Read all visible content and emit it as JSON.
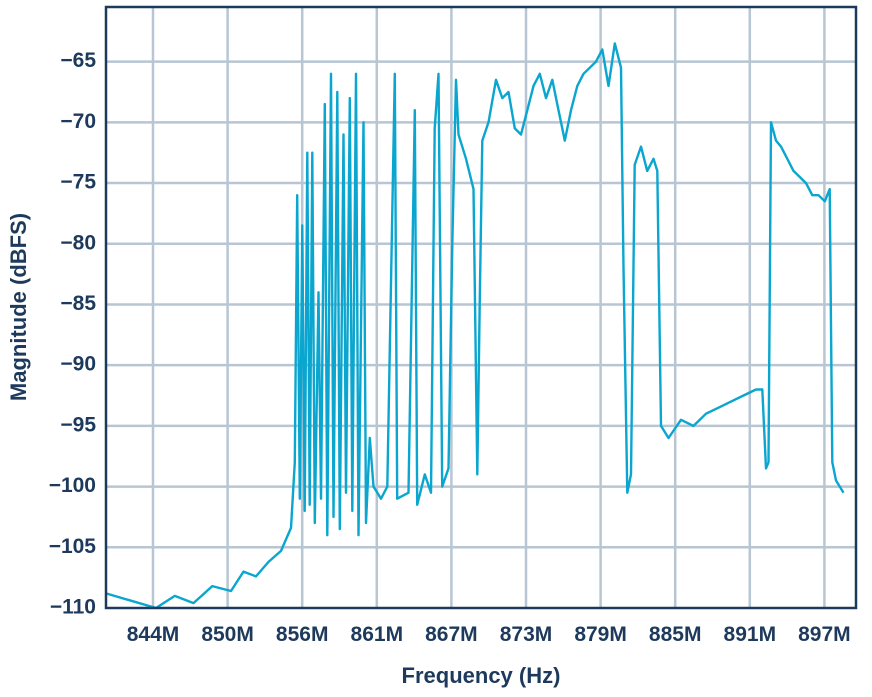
{
  "colors": {
    "trace": "#0aa6cf",
    "grid": "#b7c6d2",
    "frame": "#1d3a5c",
    "text": "#1d3a5c"
  },
  "chart_data": {
    "type": "line",
    "title": "",
    "xlabel": "Frequency (Hz)",
    "ylabel": "Magnitude (dBFS)",
    "x_tick_labels": [
      "844M",
      "850M",
      "856M",
      "861M",
      "867M",
      "873M",
      "879M",
      "885M",
      "891M",
      "897M"
    ],
    "y_tick_labels": [
      "−65",
      "−70",
      "−75",
      "−80",
      "−85",
      "−90",
      "−95",
      "−100",
      "−105",
      "−110"
    ],
    "xlim": [
      838.0,
      898.0
    ],
    "ylim": [
      -110,
      -60.5
    ],
    "grid": true,
    "legend": "none",
    "series": [
      {
        "values": [
          [
            838.0,
            -108.8
          ],
          [
            840.0,
            -109.4
          ],
          [
            842.0,
            -110.0
          ],
          [
            843.5,
            -109.0
          ],
          [
            845.0,
            -109.6
          ],
          [
            846.5,
            -108.2
          ],
          [
            848.0,
            -108.6
          ],
          [
            849.0,
            -107.0
          ],
          [
            850.0,
            -107.4
          ],
          [
            851.0,
            -106.2
          ],
          [
            852.0,
            -105.3
          ],
          [
            852.8,
            -103.4
          ],
          [
            853.1,
            -98.0
          ],
          [
            853.3,
            -76.0
          ],
          [
            853.5,
            -101.0
          ],
          [
            853.7,
            -78.5
          ],
          [
            853.9,
            -102.0
          ],
          [
            854.1,
            -72.5
          ],
          [
            854.3,
            -101.5
          ],
          [
            854.5,
            -72.5
          ],
          [
            854.7,
            -103.0
          ],
          [
            855.0,
            -84.0
          ],
          [
            855.2,
            -101.0
          ],
          [
            855.5,
            -68.5
          ],
          [
            855.7,
            -104.0
          ],
          [
            856.0,
            -66.0
          ],
          [
            856.2,
            -102.5
          ],
          [
            856.5,
            -67.5
          ],
          [
            856.7,
            -103.5
          ],
          [
            857.0,
            -71.0
          ],
          [
            857.2,
            -100.5
          ],
          [
            857.5,
            -68.0
          ],
          [
            857.7,
            -102.0
          ],
          [
            858.0,
            -66.0
          ],
          [
            858.2,
            -104.0
          ],
          [
            858.6,
            -70.0
          ],
          [
            858.8,
            -103.0
          ],
          [
            859.1,
            -96.0
          ],
          [
            859.4,
            -100.0
          ],
          [
            860.0,
            -101.0
          ],
          [
            860.5,
            -100.0
          ],
          [
            861.1,
            -66.0
          ],
          [
            861.3,
            -101.0
          ],
          [
            862.2,
            -100.5
          ],
          [
            862.7,
            -69.0
          ],
          [
            862.9,
            -101.5
          ],
          [
            863.5,
            -99.0
          ],
          [
            864.0,
            -100.5
          ],
          [
            864.3,
            -70.5
          ],
          [
            864.6,
            -66.0
          ],
          [
            864.9,
            -100.0
          ],
          [
            865.4,
            -98.5
          ],
          [
            865.7,
            -80.0
          ],
          [
            866.0,
            -66.5
          ],
          [
            866.2,
            -71.0
          ],
          [
            866.8,
            -73.0
          ],
          [
            867.4,
            -75.5
          ],
          [
            867.7,
            -99.0
          ],
          [
            867.9,
            -85.0
          ],
          [
            868.1,
            -71.5
          ],
          [
            868.6,
            -70.0
          ],
          [
            869.2,
            -66.5
          ],
          [
            869.7,
            -68.0
          ],
          [
            870.2,
            -67.5
          ],
          [
            870.7,
            -70.5
          ],
          [
            871.2,
            -71.0
          ],
          [
            871.7,
            -69.0
          ],
          [
            872.2,
            -67.0
          ],
          [
            872.7,
            -66.0
          ],
          [
            873.2,
            -68.0
          ],
          [
            873.7,
            -66.5
          ],
          [
            874.2,
            -69.0
          ],
          [
            874.7,
            -71.5
          ],
          [
            875.2,
            -69.0
          ],
          [
            875.7,
            -67.0
          ],
          [
            876.2,
            -66.0
          ],
          [
            876.7,
            -65.5
          ],
          [
            877.2,
            -65.0
          ],
          [
            877.7,
            -64.0
          ],
          [
            878.2,
            -67.0
          ],
          [
            878.7,
            -63.5
          ],
          [
            879.2,
            -65.5
          ],
          [
            879.4,
            -82.0
          ],
          [
            879.7,
            -100.5
          ],
          [
            880.0,
            -99.0
          ],
          [
            880.3,
            -73.5
          ],
          [
            880.8,
            -72.0
          ],
          [
            881.3,
            -74.0
          ],
          [
            881.8,
            -73.0
          ],
          [
            882.1,
            -74.0
          ],
          [
            882.4,
            -95.0
          ],
          [
            883.0,
            -96.0
          ],
          [
            884.0,
            -94.5
          ],
          [
            885.0,
            -95.0
          ],
          [
            886.0,
            -94.0
          ],
          [
            887.0,
            -93.5
          ],
          [
            888.0,
            -93.0
          ],
          [
            889.0,
            -92.5
          ],
          [
            890.0,
            -92.0
          ],
          [
            890.5,
            -92.0
          ],
          [
            890.8,
            -98.5
          ],
          [
            891.0,
            -98.0
          ],
          [
            891.2,
            -70.0
          ],
          [
            891.6,
            -71.5
          ],
          [
            892.0,
            -72.0
          ],
          [
            892.5,
            -73.0
          ],
          [
            893.0,
            -74.0
          ],
          [
            893.5,
            -74.5
          ],
          [
            894.0,
            -75.0
          ],
          [
            894.5,
            -76.0
          ],
          [
            895.0,
            -76.0
          ],
          [
            895.5,
            -76.5
          ],
          [
            895.9,
            -75.5
          ],
          [
            896.1,
            -98.0
          ],
          [
            896.4,
            -99.5
          ],
          [
            896.7,
            -100.0
          ],
          [
            897.0,
            -100.5
          ]
        ]
      }
    ]
  }
}
